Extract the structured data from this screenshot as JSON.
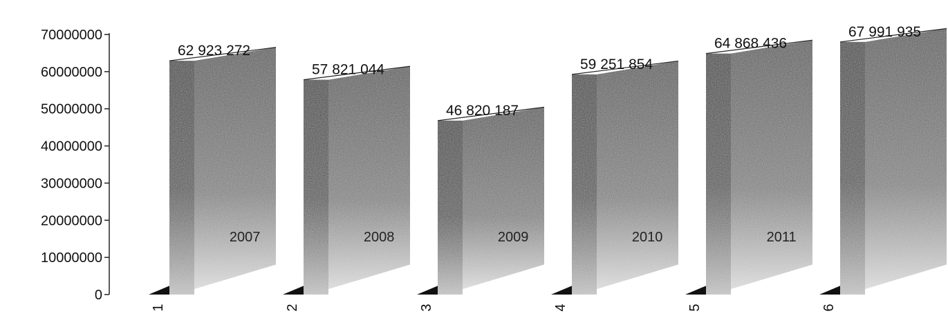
{
  "chart_data": {
    "type": "bar",
    "categories": [
      "1",
      "2",
      "3",
      "4",
      "5",
      "6"
    ],
    "years": [
      "2007",
      "2008",
      "2009",
      "2010",
      "2011",
      ""
    ],
    "values": [
      62923272,
      57821044,
      46820187,
      59251854,
      64868436,
      67991935
    ],
    "value_labels": [
      "62 923 272",
      "57 821 044",
      "46 820 187",
      "59 251 854",
      "64 868 436",
      "67 991 935"
    ],
    "y_ticks": [
      "0",
      "10000000",
      "20000000",
      "30000000",
      "40000000",
      "50000000",
      "60000000",
      "70000000"
    ],
    "ylim": [
      0,
      70000000
    ],
    "style": "3d",
    "bar_color": "#3a3a3a"
  }
}
